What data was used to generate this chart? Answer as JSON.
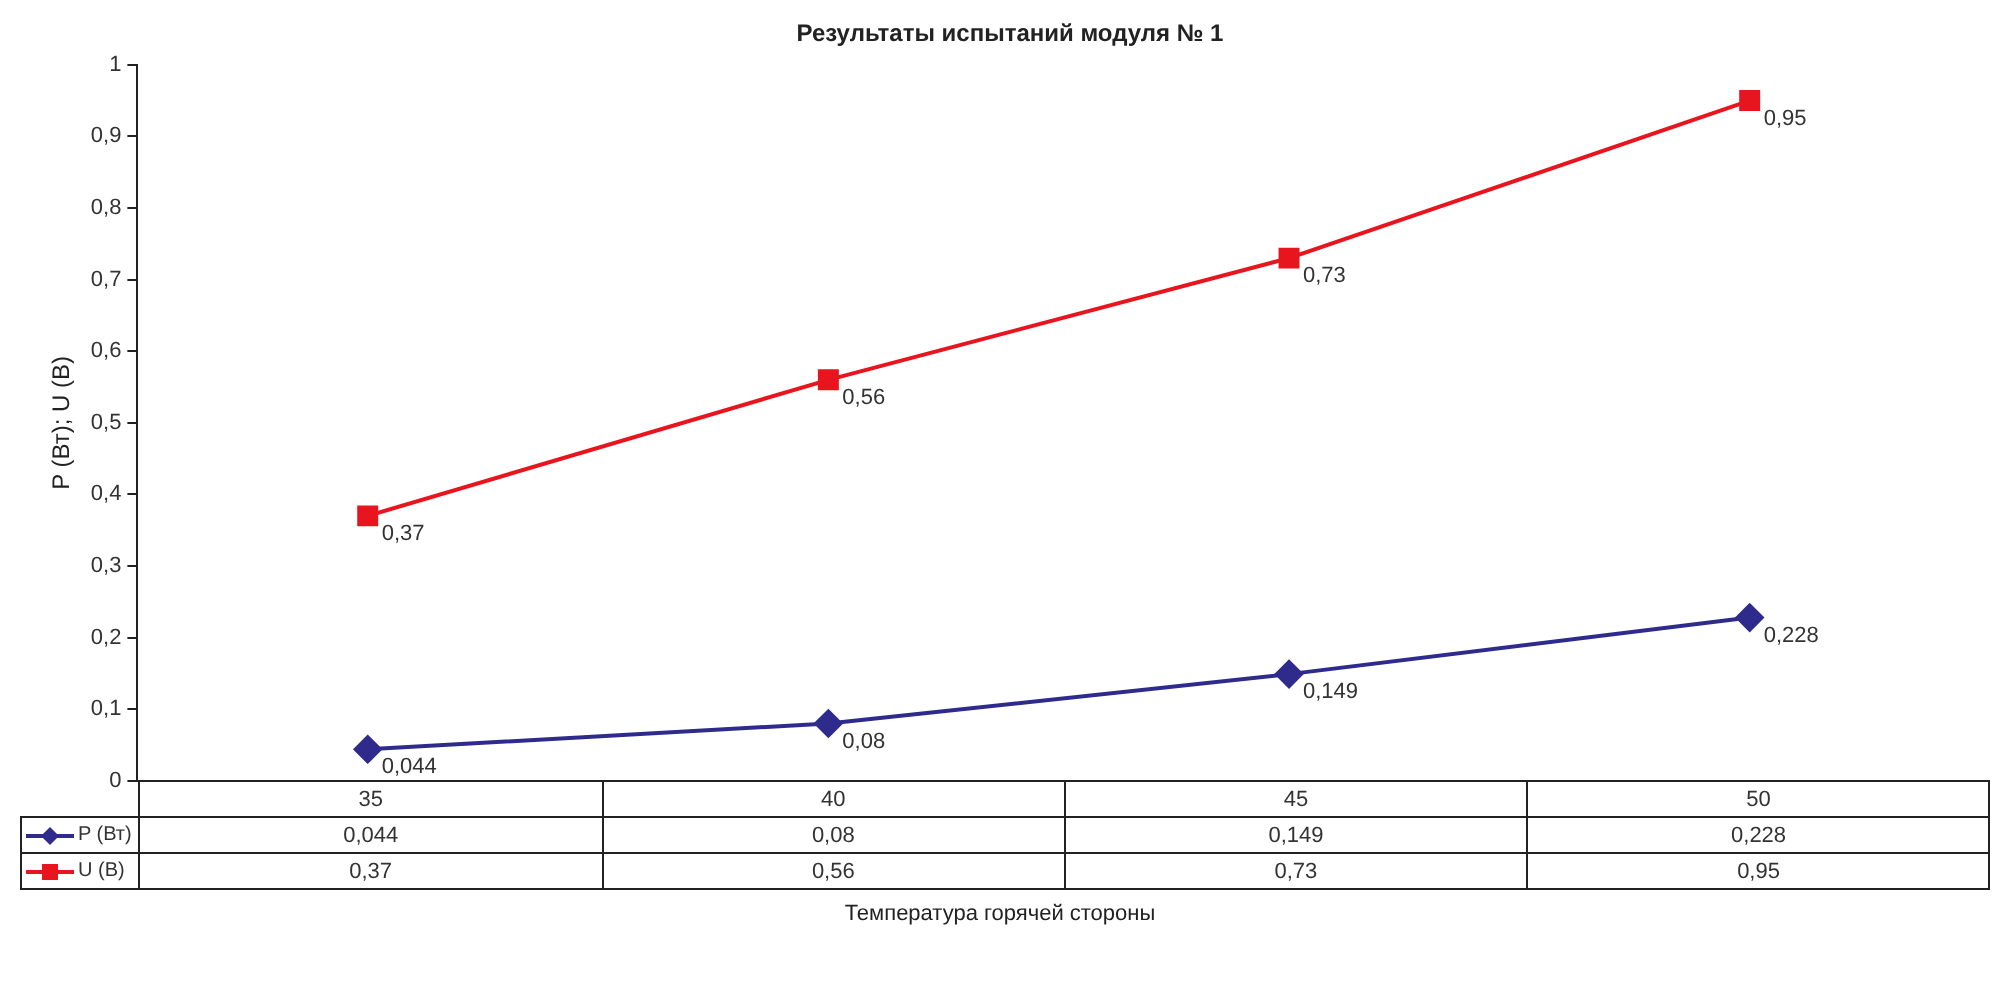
{
  "chart_data": {
    "type": "line",
    "title": "Результаты испытаний модуля № 1",
    "xlabel": "Температура горячей стороны",
    "ylabel": "P (Вт); U (В)",
    "categories": [
      "35",
      "40",
      "45",
      "50"
    ],
    "series": [
      {
        "name": "P (Вт)",
        "color": "#2e2b8c",
        "marker": "diamond",
        "values": [
          0.044,
          0.08,
          0.149,
          0.228
        ],
        "value_labels": [
          "0,044",
          "0,08",
          "0,149",
          "0,228"
        ]
      },
      {
        "name": "U (В)",
        "color": "#e8141e",
        "marker": "square",
        "values": [
          0.37,
          0.56,
          0.73,
          0.95
        ],
        "value_labels": [
          "0,37",
          "0,56",
          "0,73",
          "0,95"
        ]
      }
    ],
    "ylim": [
      0,
      1
    ],
    "yticks": [
      0,
      {
        "value": 0.1,
        "label": "0,1"
      },
      {
        "value": 0.2,
        "label": "0,2"
      },
      {
        "value": 0.3,
        "label": "0,3"
      },
      {
        "value": 0.4,
        "label": "0,4"
      },
      {
        "value": 0.5,
        "label": "0,5"
      },
      {
        "value": 0.6,
        "label": "0,6"
      },
      {
        "value": 0.7,
        "label": "0,7"
      },
      {
        "value": 0.8,
        "label": "0,8"
      },
      {
        "value": 0.9,
        "label": "0,9"
      },
      1
    ],
    "grid": false,
    "legend": "bottom left"
  }
}
